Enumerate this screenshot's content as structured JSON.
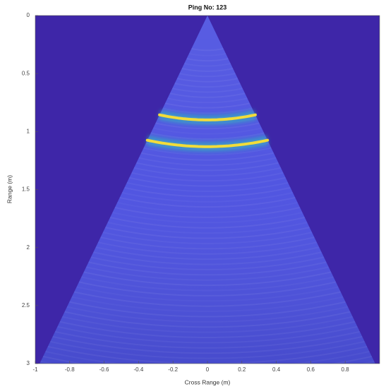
{
  "chart_data": {
    "type": "sonar",
    "title": "Ping No: 123",
    "x_label": "Cross Range (m)",
    "y_label": "Range (m)",
    "xlim": [
      -1,
      1
    ],
    "ylim": [
      0,
      3
    ],
    "y_reversed": true,
    "xticks": [
      -1,
      -0.8,
      -0.6,
      -0.4,
      -0.2,
      0,
      0.2,
      0.4,
      0.6,
      0.8
    ],
    "yticks": [
      0,
      0.5,
      1,
      1.5,
      2,
      2.5,
      3
    ],
    "echo_ranges": [
      0.9,
      1.13
    ],
    "background_color": "#3e26a8",
    "sector_color": "#4a4fe0",
    "echo_color": "#f2dc3a"
  }
}
